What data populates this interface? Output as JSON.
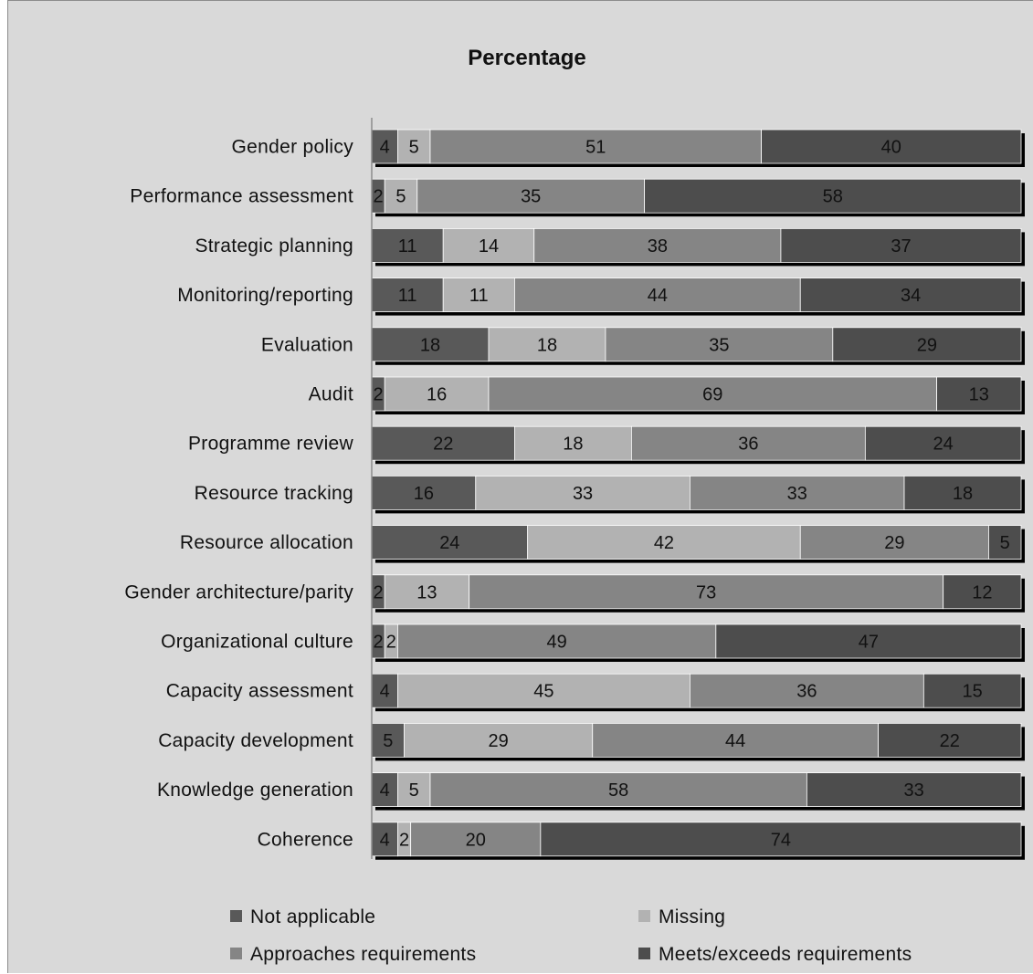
{
  "chart_data": {
    "type": "bar",
    "orientation": "horizontal",
    "stacked": true,
    "stack_mode": "percent",
    "title": "Percentage",
    "categories": [
      "Gender policy",
      "Performance assessment",
      "Strategic planning",
      "Monitoring/reporting",
      "Evaluation",
      "Audit",
      "Programme review",
      "Resource tracking",
      "Resource allocation",
      "Gender architecture/parity",
      "Organizational culture",
      "Capacity assessment",
      "Capacity development",
      "Knowledge generation",
      "Coherence"
    ],
    "series": [
      {
        "name": "Not applicable",
        "color": "#595959",
        "values": [
          4,
          2,
          11,
          11,
          18,
          2,
          22,
          16,
          24,
          2,
          2,
          4,
          5,
          4,
          4
        ]
      },
      {
        "name": "Missing",
        "color": "#b2b2b2",
        "values": [
          5,
          5,
          14,
          11,
          18,
          16,
          18,
          33,
          42,
          13,
          2,
          45,
          29,
          5,
          2
        ]
      },
      {
        "name": "Approaches requirements",
        "color": "#858585",
        "values": [
          51,
          35,
          38,
          44,
          35,
          69,
          36,
          33,
          29,
          73,
          49,
          36,
          44,
          58,
          20
        ]
      },
      {
        "name": "Meets/exceeds requirements",
        "color": "#4d4d4d",
        "values": [
          40,
          58,
          37,
          34,
          29,
          13,
          24,
          18,
          5,
          12,
          47,
          15,
          22,
          33,
          74
        ]
      }
    ],
    "xlim": [
      0,
      100
    ],
    "grid": false,
    "legend_position": "bottom"
  }
}
